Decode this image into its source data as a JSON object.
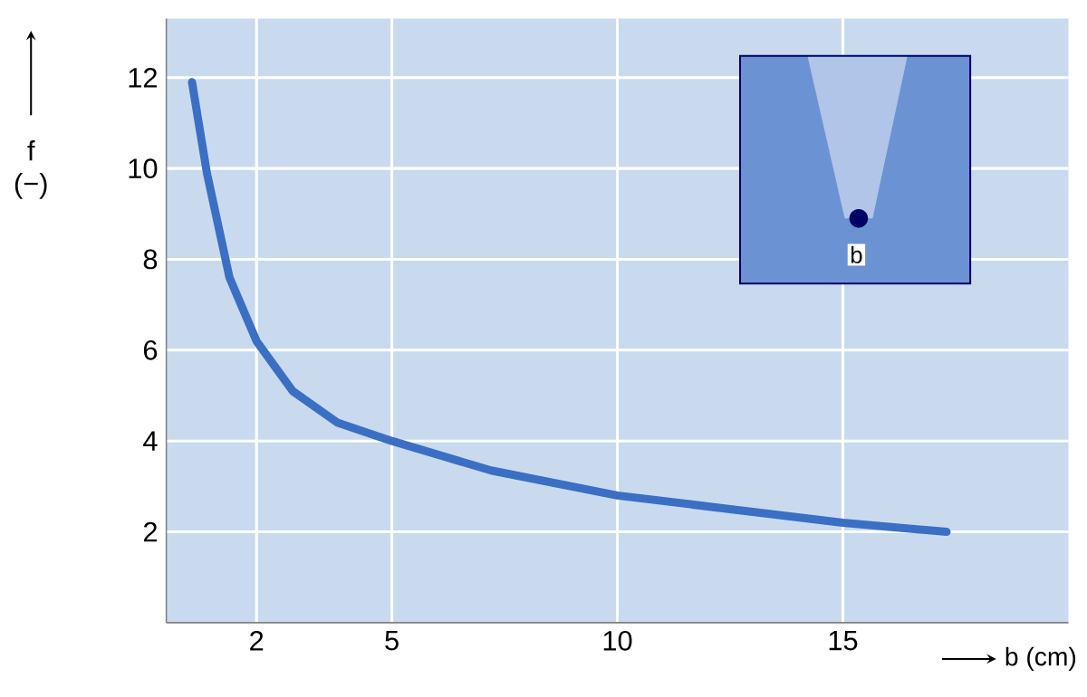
{
  "chart_data": {
    "type": "line",
    "xlabel": "b (cm)",
    "ylabel": "f (−)",
    "x": [
      0.57,
      0.9,
      1.4,
      2,
      2.8,
      3.8,
      5,
      7.2,
      10,
      12.5,
      15,
      17.3
    ],
    "values": [
      11.9,
      9.9,
      7.6,
      6.2,
      5.1,
      4.4,
      4.0,
      3.35,
      2.8,
      2.5,
      2.2,
      2.0
    ],
    "color": "#3a6fc4",
    "xlim": [
      0,
      20
    ],
    "xticks": [
      2,
      5,
      10,
      15
    ],
    "ylim": [
      0,
      13.3
    ],
    "yticks": [
      2,
      4,
      6,
      8,
      10,
      12
    ],
    "grid": true,
    "marker": "none",
    "line_style": "solid",
    "annotations": [
      {
        "text": "b",
        "x": 15.3,
        "y": 8.1
      }
    ]
  }
}
